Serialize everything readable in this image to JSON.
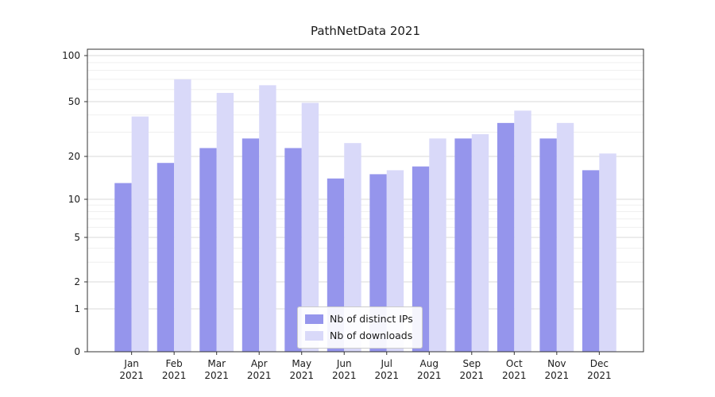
{
  "chart_data": {
    "type": "bar",
    "title": "PathNetData 2021",
    "categories": [
      "Jan",
      "Feb",
      "Mar",
      "Apr",
      "May",
      "Jun",
      "Jul",
      "Aug",
      "Sep",
      "Oct",
      "Nov",
      "Dec"
    ],
    "category_year": "2021",
    "yscale": "log",
    "yticks": [
      0,
      1,
      2,
      5,
      10,
      20,
      50,
      100
    ],
    "minor_yticks": [
      3,
      4,
      6,
      7,
      8,
      9,
      30,
      40,
      60,
      70,
      80,
      90
    ],
    "ylim": [
      0,
      100
    ],
    "grid": "both",
    "series": [
      {
        "name": "Nb of distinct IPs",
        "color": "#9595ec",
        "values": [
          13,
          18,
          23,
          27,
          23,
          14,
          15,
          17,
          27,
          35,
          27,
          16
        ]
      },
      {
        "name": "Nb of downloads",
        "color": "#d9d9f9",
        "values": [
          39,
          70,
          57,
          64,
          49,
          25,
          16,
          27,
          29,
          43,
          35,
          21
        ]
      }
    ],
    "legend": {
      "position": "lower center inside",
      "items": [
        "Nb of distinct IPs",
        "Nb of downloads"
      ]
    }
  }
}
